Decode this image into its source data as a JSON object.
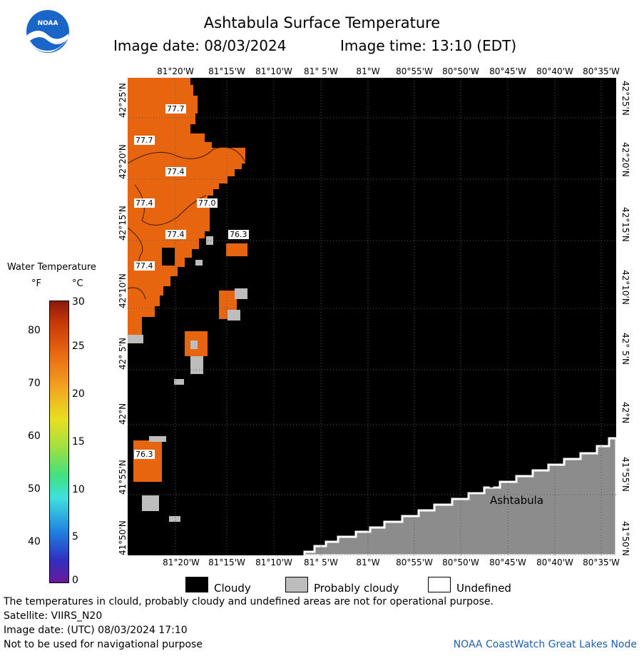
{
  "header": {
    "title": "Ashtabula Surface Temperature",
    "image_date": "Image date: 08/03/2024",
    "image_time": "Image time: 13:10 (EDT)"
  },
  "map": {
    "lon_ticks": [
      "81°20'W",
      "81°15'W",
      "81°10'W",
      "81° 5'W",
      "81°W",
      "80°55'W",
      "80°50'W",
      "80°45'W",
      "80°40'W",
      "80°35'W"
    ],
    "lat_ticks": [
      "42°25'N",
      "42°20'N",
      "42°15'N",
      "42°10'N",
      "42° 5'N",
      "42°N",
      "41°55'N",
      "41°50'N"
    ],
    "temp_labels": [
      "77.7",
      "77.7",
      "77.4",
      "77.4",
      "77.0",
      "77.4",
      "76.3",
      "77.4",
      "76.3"
    ],
    "place_label": "Ashtabula",
    "colors": {
      "water_warm": "#e8650f",
      "land": "#8c8c8c",
      "cloudy": "#000000",
      "probably_cloudy": "#bdbdbd",
      "undefined": "#ffffff"
    }
  },
  "colorbar": {
    "title": "Water Temperature",
    "unit_f": "°F",
    "unit_c": "°C",
    "f_ticks": [
      "80",
      "70",
      "60",
      "50",
      "40"
    ],
    "c_ticks": [
      "30",
      "25",
      "20",
      "15",
      "10",
      "5",
      "0"
    ]
  },
  "legend": {
    "cloudy": "Cloudy",
    "probably_cloudy": "Probably cloudy",
    "undefined": "Undefined"
  },
  "footer": {
    "line1": "The temperatures in clould, probably cloudy and undefined areas are not for operational purpose.",
    "line2": "Satellite: VIIRS_N20",
    "line3": "Image date: (UTC) 08/03/2024  17:10",
    "line4": "Not to be used for navigational purpose",
    "credit": "NOAA CoastWatch Great Lakes Node"
  }
}
